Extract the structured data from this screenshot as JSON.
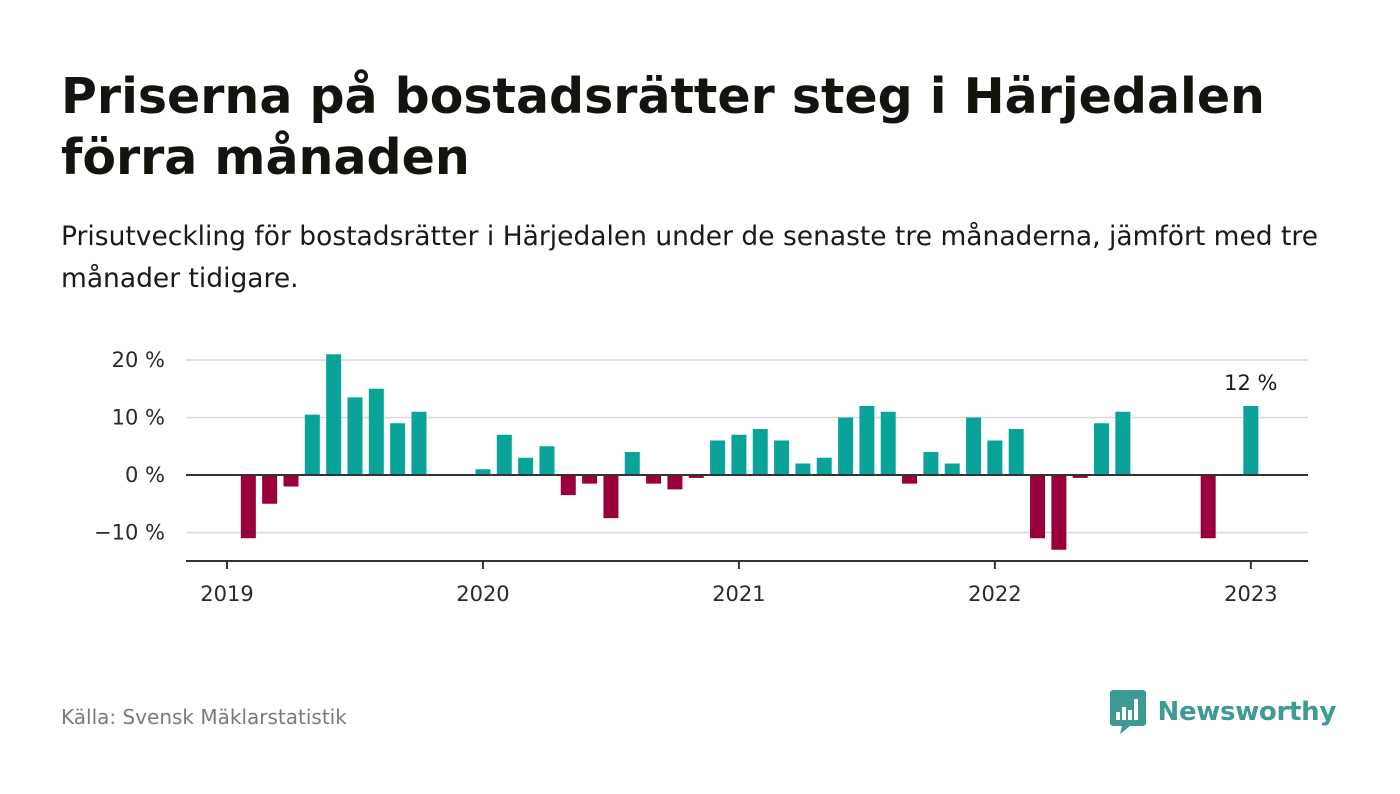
{
  "title": "Priserna på bostadsrätter steg i Härjedalen förra månaden",
  "subtitle": "Prisutveckling för bostadsrätter i Härjedalen under de senaste tre månaderna, jämfört med tre månader tidigare.",
  "source": "Källa: Svensk Mäklarstatistik",
  "brand": "Newsworthy",
  "colors": {
    "positive": "#0aa39a",
    "negative": "#99003b",
    "brand": "#3d9b94"
  },
  "chart_data": {
    "type": "bar",
    "ylim": [
      -15,
      21
    ],
    "yticks": [
      20,
      10,
      0,
      -10
    ],
    "ytick_labels": [
      "20 %",
      "10 %",
      "0 %",
      "−10 %"
    ],
    "xticks": [
      "2019",
      "2020",
      "2021",
      "2022",
      "2023"
    ],
    "grid": true,
    "annotation": {
      "text": "12 %"
    },
    "categories": [
      "2019-01",
      "2019-02",
      "2019-03",
      "2019-04",
      "2019-05",
      "2019-06",
      "2019-07",
      "2019-08",
      "2019-09",
      "2019-10",
      "2019-11",
      "2019-12",
      "2020-01",
      "2020-02",
      "2020-03",
      "2020-04",
      "2020-05",
      "2020-06",
      "2020-07",
      "2020-08",
      "2020-09",
      "2020-10",
      "2020-11",
      "2020-12",
      "2021-01",
      "2021-02",
      "2021-03",
      "2021-04",
      "2021-05",
      "2021-06",
      "2021-07",
      "2021-08",
      "2021-09",
      "2021-10",
      "2021-11",
      "2021-12",
      "2022-01",
      "2022-02",
      "2022-03",
      "2022-04",
      "2022-05",
      "2022-06",
      "2022-07",
      "2022-08",
      "2022-09",
      "2022-10",
      "2022-11",
      "2022-12",
      "2023-01"
    ],
    "values": [
      null,
      -11,
      -5,
      -2,
      10.5,
      21,
      13.5,
      15,
      9,
      11,
      null,
      null,
      1,
      7,
      3,
      5,
      -3.5,
      -1.5,
      -7.5,
      4,
      -1.5,
      -2.5,
      -0.5,
      6,
      7,
      8,
      6,
      2,
      3,
      10,
      12,
      11,
      -1.5,
      4,
      2,
      10,
      6,
      8,
      -11,
      -13,
      -0.5,
      9,
      11,
      null,
      null,
      null,
      -11,
      null,
      12
    ]
  }
}
